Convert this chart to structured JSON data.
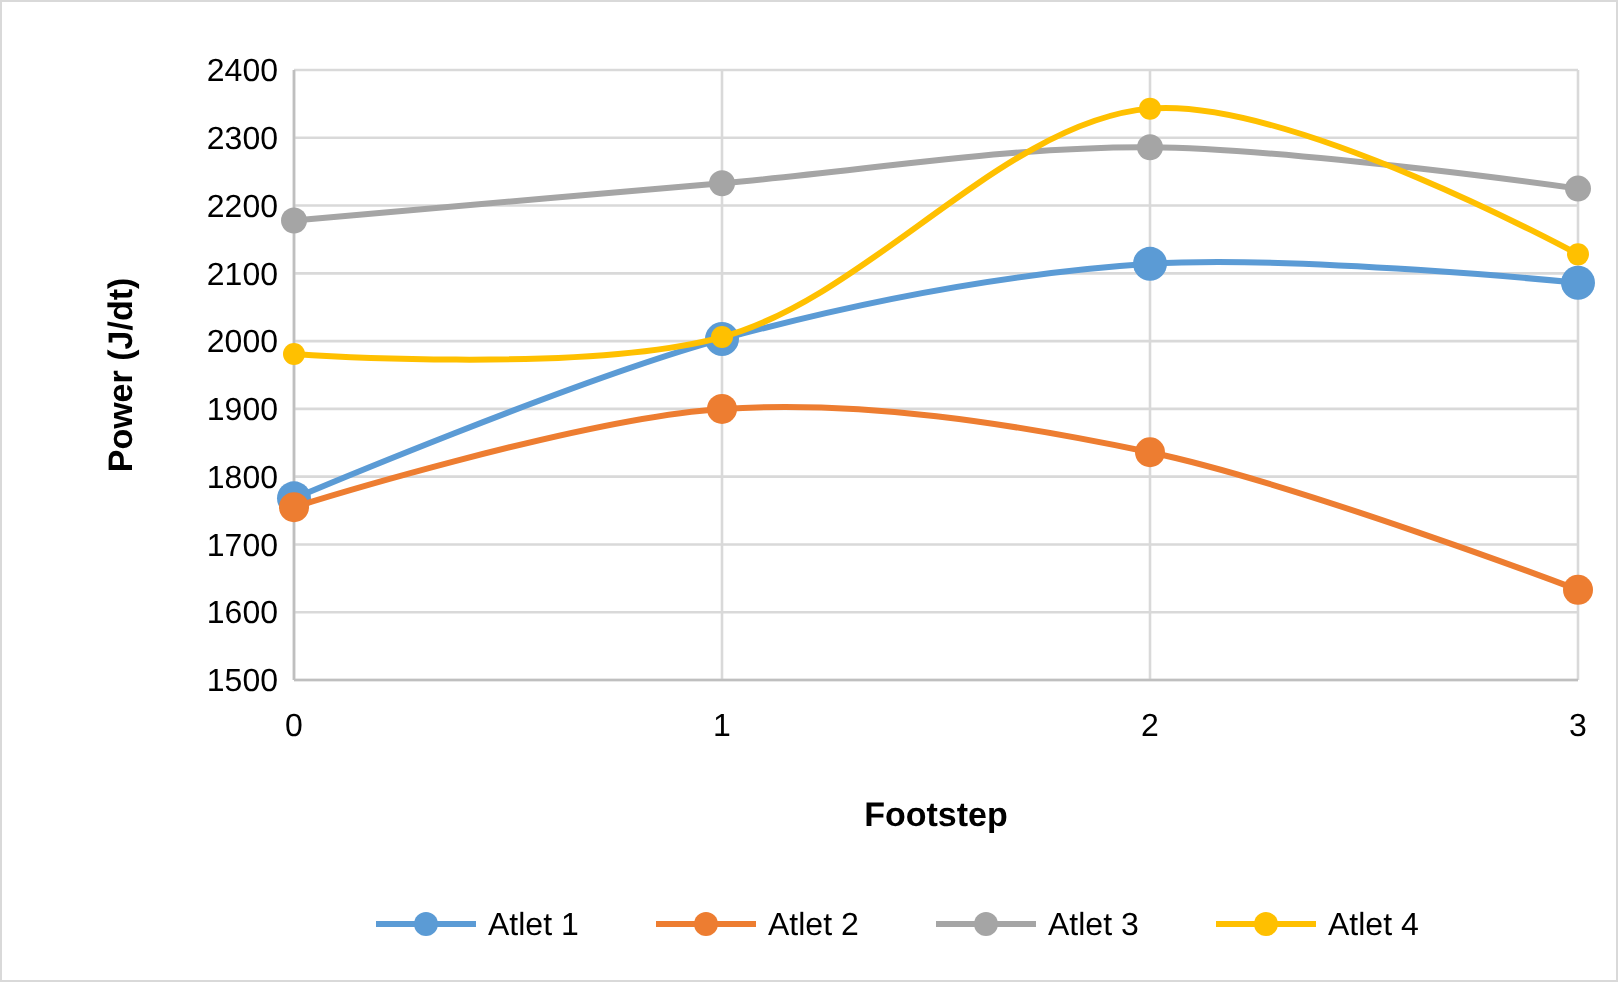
{
  "chart_data": {
    "type": "line",
    "xlabel": "Footstep",
    "ylabel": "Power (J/dt)",
    "x": [
      0,
      1,
      2,
      3
    ],
    "xlim": [
      0,
      3
    ],
    "xticks": [
      0,
      1,
      2,
      3
    ],
    "ylim": [
      1500,
      2400
    ],
    "yticks": [
      1500,
      1600,
      1700,
      1800,
      1900,
      2000,
      2100,
      2200,
      2300,
      2400
    ],
    "grid": true,
    "legend": "bottom",
    "marker": "circle",
    "line_style": "solid",
    "series": [
      {
        "name": "Atlet 1",
        "color": "#5b9bd5",
        "values": [
          1768,
          2003,
          2114,
          2086
        ]
      },
      {
        "name": "Atlet 2",
        "color": "#ed7d31",
        "values": [
          1755,
          1900,
          1836,
          1633
        ]
      },
      {
        "name": "Atlet 3",
        "color": "#a5a5a5",
        "values": [
          2178,
          2233,
          2286,
          2225
        ]
      },
      {
        "name": "Atlet 4",
        "color": "#ffc000",
        "values": [
          1981,
          2006,
          2343,
          2128
        ]
      }
    ]
  }
}
